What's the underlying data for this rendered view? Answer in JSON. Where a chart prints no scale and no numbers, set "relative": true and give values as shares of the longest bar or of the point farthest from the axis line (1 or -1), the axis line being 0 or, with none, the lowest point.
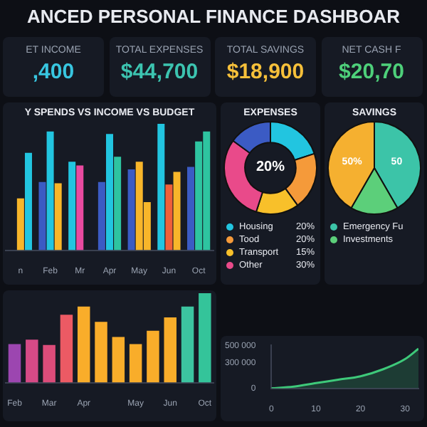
{
  "chart_data": [
    {
      "type": "other",
      "title": "ANCED PERSONAL FINANCE DASHBOAR",
      "categories": [
        "ET INCOME",
        "TOTAL EXPENSES",
        "TOTAL SAVINGS",
        "NET CASH F"
      ],
      "value_labels": [
        ",400",
        "$44,700",
        "$18,900",
        "$20,70"
      ]
    },
    {
      "type": "bar",
      "relative": true,
      "title": "Y SPENDS VS INCOME VS BUDGET",
      "categories": [
        "n",
        "Feb",
        "Mr",
        "Apr",
        "May",
        "Jun",
        "Oct"
      ],
      "series": [
        {
          "values": [
            null,
            0.54,
            0.7,
            0.54,
            0.64,
            1,
            0.66
          ],
          "colors": [
            "#3b5bc4",
            "#3b5bc4",
            "#22c5e0",
            "#3b5bc4",
            "#3b5bc4",
            "#22c5e0",
            "#3b5bc4"
          ]
        },
        {
          "values": [
            0.41,
            0.94,
            0.67,
            0.92,
            0.7,
            0.52,
            0.86
          ],
          "colors": [
            "#f8b62a",
            "#22c5e0",
            "#e94aa0",
            "#22c5e0",
            "#f8b62a",
            "#f0603a",
            "#2ec4a0"
          ]
        },
        {
          "values": [
            0.77,
            0.53,
            null,
            0.74,
            0.38,
            0.62,
            0.94
          ],
          "colors": [
            "#22c5e0",
            "#f8b62a",
            "#22c5e0",
            "#2ec4a0",
            "#f8b62a",
            "#f8b62a",
            "#2ec4a0"
          ]
        }
      ]
    },
    {
      "type": "donut",
      "title": "EXPENSES",
      "categories": [
        "Housing",
        "Tood",
        "Transport",
        "Other",
        null
      ],
      "values": [
        20,
        20,
        15,
        30,
        15
      ],
      "value_labels": [
        "20%",
        "20%",
        "15%",
        "30%",
        null
      ],
      "colors": [
        "#22c5e0",
        "#f59a3a",
        "#f8c02a",
        "#e94a8a",
        "#3b5bc4"
      ],
      "annotations": [
        "20%"
      ],
      "legend": "bottom"
    },
    {
      "type": "pie",
      "title": "SAVINGS",
      "categories": [
        "Emergency Fu",
        "Investments",
        null
      ],
      "values": [
        50,
        20,
        50
      ],
      "value_labels": [
        "50",
        null,
        "50%"
      ],
      "colors": [
        "#3cc4a8",
        "#5ccf7a",
        "#f5b030"
      ],
      "legend": "bottom"
    },
    {
      "type": "bar",
      "relative": true,
      "categories": [
        "Feb",
        null,
        "Mar",
        null,
        "Apr",
        null,
        null,
        "May",
        null,
        "Jun",
        null,
        "Oct"
      ],
      "values": [
        0.43,
        0.48,
        0.42,
        0.76,
        0.85,
        0.68,
        0.51,
        0.43,
        0.58,
        0.73,
        0.85,
        1
      ],
      "colors": [
        "#9c46b0",
        "#d64a86",
        "#dc4c7a",
        "#ec5a64",
        "#f9ad2a",
        "#f9ad2a",
        "#f9ad2a",
        "#f9ad2a",
        "#f9ad2a",
        "#f9ad2a",
        "#3cc4a0",
        "#34c49a"
      ]
    },
    {
      "type": "area",
      "x": [
        0,
        5,
        10,
        15,
        20,
        25,
        30,
        33
      ],
      "values": [
        0,
        20000,
        60000,
        100000,
        140000,
        220000,
        340000,
        460000
      ],
      "color": "#3ec97a",
      "marker": "none",
      "xlim": [
        0,
        33
      ],
      "xticks": [
        0,
        10,
        20,
        30
      ],
      "ylim": [
        0,
        500000
      ],
      "yticks": [
        0,
        {
          "value": 300000,
          "label": "300 000"
        },
        {
          "value": 500000,
          "label": "500 000"
        }
      ]
    }
  ]
}
